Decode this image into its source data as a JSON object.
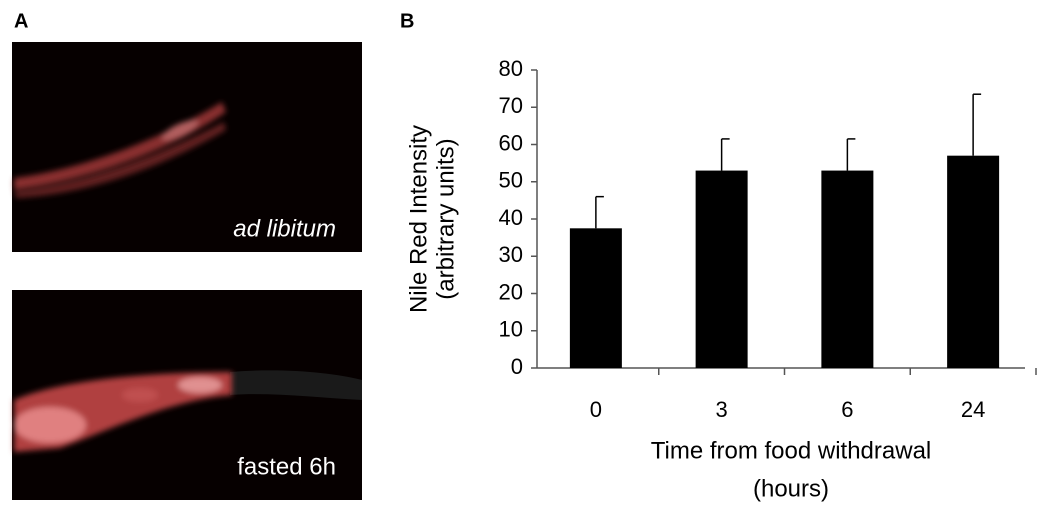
{
  "panel_labels": [
    "A",
    "B"
  ],
  "images": [
    {
      "caption": "ad libitum"
    },
    {
      "caption": "fasted 6h"
    }
  ],
  "chart_data": {
    "type": "bar",
    "categories": [
      "0",
      "3",
      "6",
      "24"
    ],
    "values": [
      37.5,
      53,
      53,
      57
    ],
    "errors": [
      8.5,
      8.5,
      8.5,
      16.5
    ],
    "color": "#000000",
    "ylabel": [
      "Nile Red Intensity",
      "(arbitrary units)"
    ],
    "xlabel": [
      "Time from food withdrawal",
      "(hours)"
    ],
    "ylim": [
      0,
      80
    ],
    "yticks": [
      0,
      10,
      20,
      30,
      40,
      50,
      60,
      70,
      80
    ],
    "grid": false
  }
}
